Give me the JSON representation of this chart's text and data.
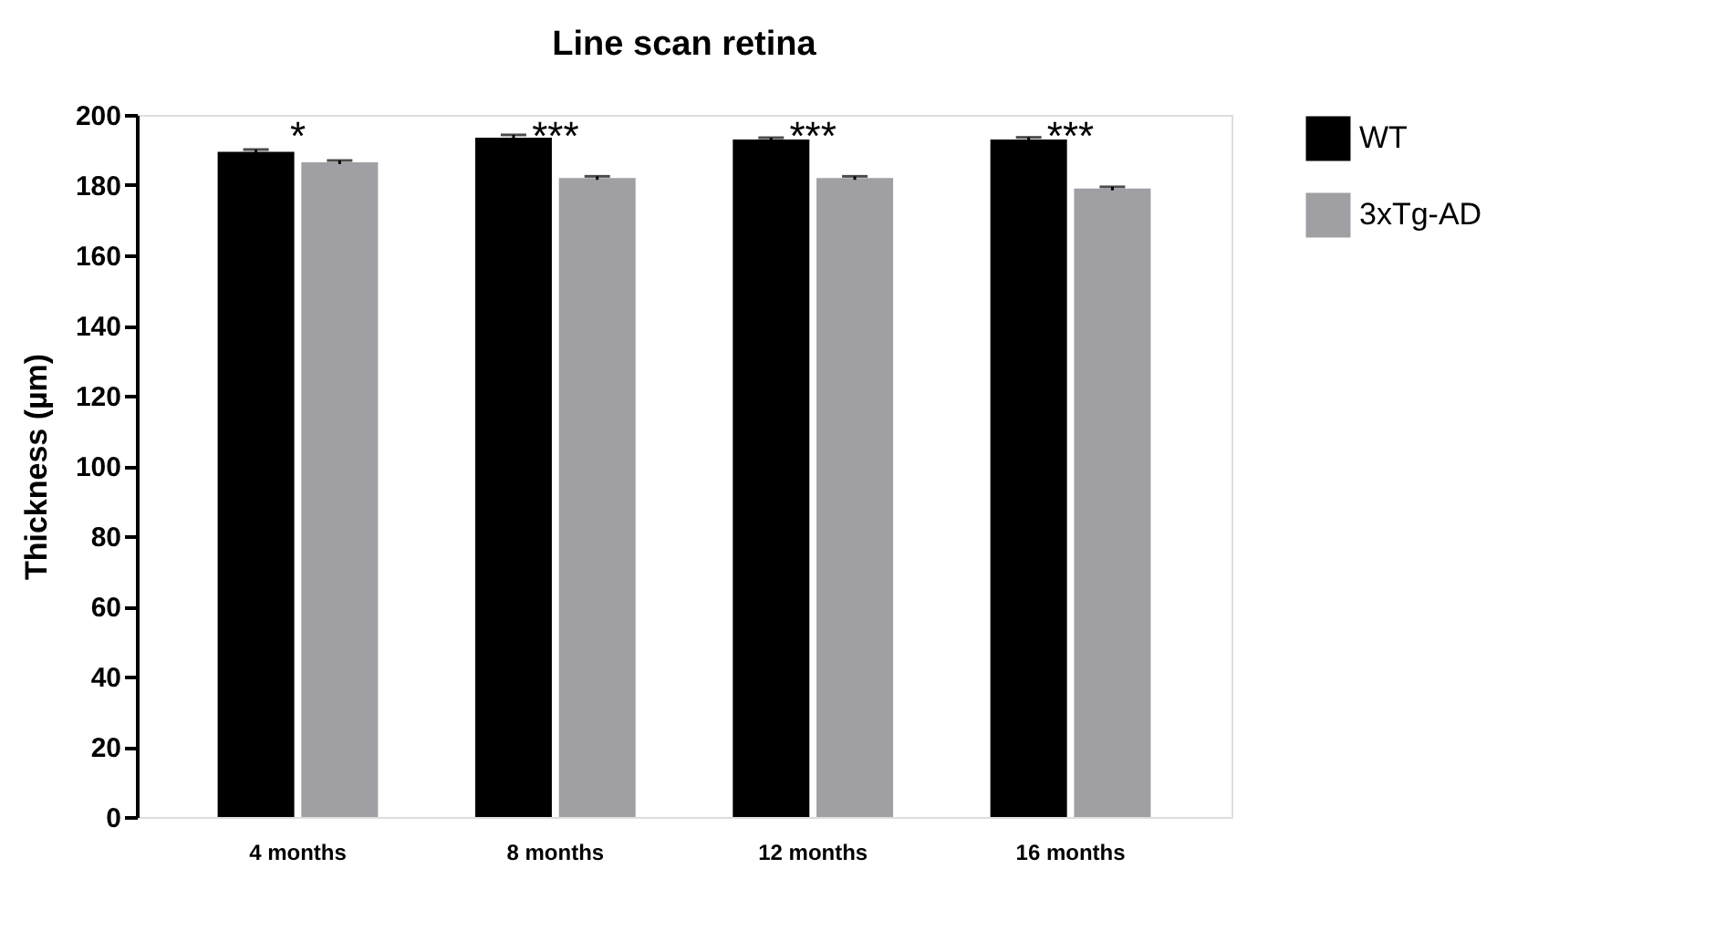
{
  "chart_data": {
    "type": "bar",
    "title": "Line scan retina",
    "ylabel": "Thickness (µm)",
    "categories": [
      "4 months",
      "8 months",
      "12 months",
      "16 months"
    ],
    "series": [
      {
        "name": "WT",
        "color": "#000000",
        "values": [
          189.5,
          193.5,
          193,
          193
        ],
        "errors": [
          0.6,
          0.8,
          0.5,
          0.6
        ]
      },
      {
        "name": "3xTg-AD",
        "color": "#a0a0a4",
        "values": [
          186.5,
          182,
          182,
          179
        ],
        "errors": [
          0.5,
          0.5,
          0.5,
          0.5
        ]
      }
    ],
    "ylim": [
      0,
      200
    ],
    "yticks": [
      0,
      20,
      40,
      60,
      80,
      100,
      120,
      140,
      160,
      180,
      200
    ],
    "annotations": [
      "*",
      "***",
      "***",
      "***"
    ],
    "grid": false,
    "legend": "top right"
  }
}
